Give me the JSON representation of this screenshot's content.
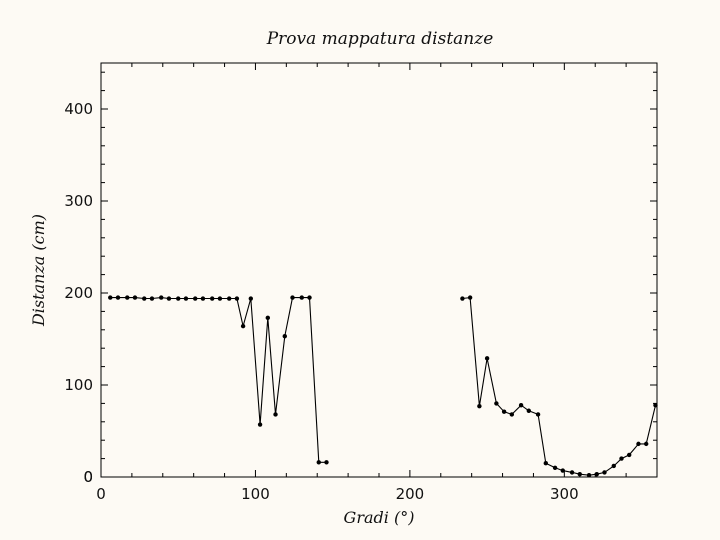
{
  "chart_data": {
    "type": "line",
    "title": "Prova mappatura distanze",
    "xlabel": "Gradi (°)",
    "ylabel": "Distanza (cm)",
    "xlim": [
      0,
      360
    ],
    "ylim": [
      0,
      450
    ],
    "xticks": [
      0,
      100,
      200,
      300
    ],
    "yticks": [
      0,
      100,
      200,
      300,
      400
    ],
    "grid": false,
    "colors": {
      "line": "#000000",
      "marker": "#000000",
      "background": "#fdfaf4"
    },
    "segments": [
      {
        "x": [
          6,
          11,
          17,
          22,
          28,
          33,
          39,
          44,
          50,
          55,
          61,
          66,
          72,
          77,
          83,
          88,
          92,
          97,
          103,
          108,
          113,
          119,
          124,
          130,
          135,
          141,
          146
        ],
        "y": [
          195,
          195,
          195,
          195,
          194,
          194,
          195,
          194,
          194,
          194,
          194,
          194,
          194,
          194,
          194,
          194,
          164,
          194,
          57,
          173,
          68,
          153,
          195,
          195,
          195,
          16,
          16
        ]
      },
      {
        "x": [
          234,
          239,
          245,
          250,
          256,
          261,
          266,
          272,
          277,
          283,
          288,
          294,
          299,
          305,
          310,
          316,
          321,
          326,
          332,
          337,
          342,
          348,
          353,
          359
        ],
        "y": [
          194,
          195,
          77,
          129,
          80,
          71,
          68,
          78,
          72,
          68,
          15,
          10,
          7,
          5,
          3,
          2,
          3,
          5,
          12,
          20,
          24,
          36,
          36,
          78
        ]
      }
    ]
  }
}
